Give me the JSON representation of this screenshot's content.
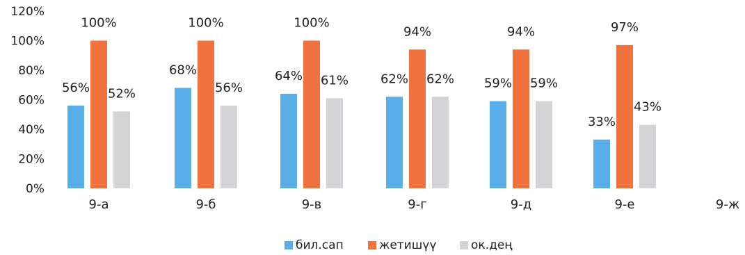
{
  "chart_data": {
    "type": "bar",
    "categories": [
      "9-а",
      "9-б",
      "9-в",
      "9-г",
      "9-д",
      "9-е",
      "9-ж"
    ],
    "series": [
      {
        "name": "бил.сап",
        "color": "#5aaee8",
        "values": [
          56,
          68,
          64,
          62,
          59,
          33,
          null
        ],
        "labels": [
          "56%",
          "68%",
          "64%",
          "62%",
          "59%",
          "33%",
          ""
        ]
      },
      {
        "name": "жетишүү",
        "color": "#f0733f",
        "values": [
          100,
          100,
          100,
          94,
          94,
          97,
          null
        ],
        "labels": [
          "100%",
          "100%",
          "100%",
          "94%",
          "94%",
          "97%",
          ""
        ]
      },
      {
        "name": "ок.дең",
        "color": "#d4d3d6",
        "values": [
          52,
          56,
          61,
          62,
          59,
          43,
          null
        ],
        "labels": [
          "52%",
          "56%",
          "61%",
          "62%",
          "59%",
          "43%",
          ""
        ]
      }
    ],
    "y_ticks": [
      "0%",
      "20%",
      "40%",
      "60%",
      "80%",
      "100%",
      "120%"
    ],
    "ylim": [
      0,
      120
    ],
    "grid": false,
    "legend_position": "bottom",
    "title": "",
    "xlabel": "",
    "ylabel": ""
  }
}
